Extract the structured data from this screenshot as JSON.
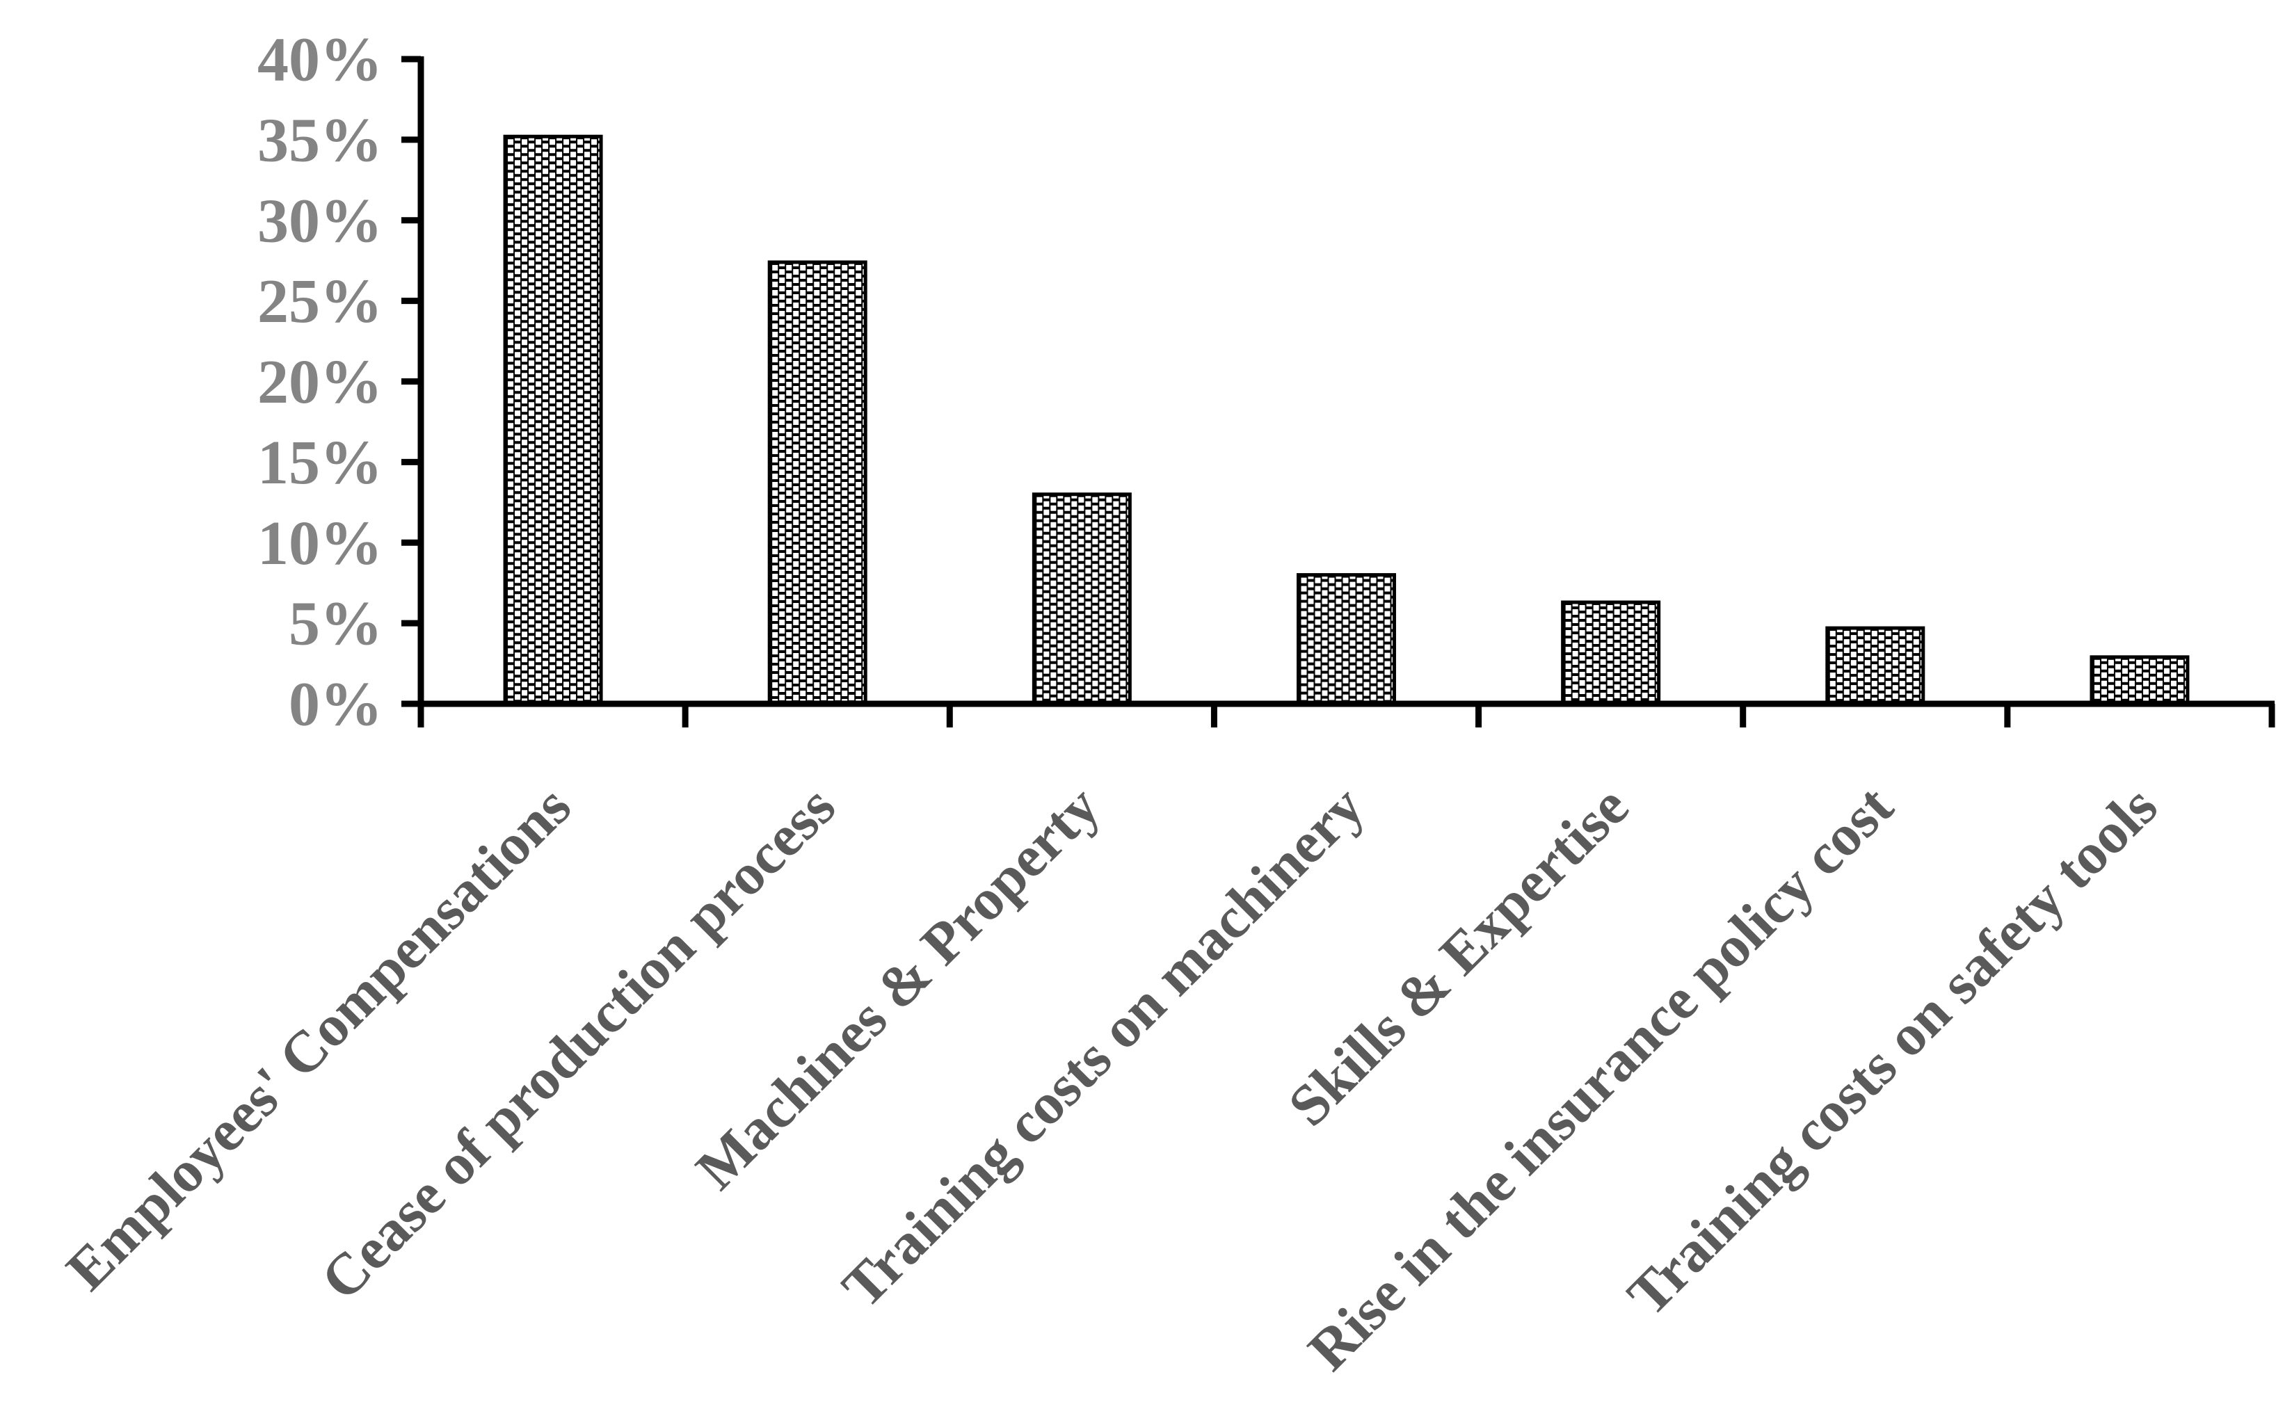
{
  "chart_data": {
    "type": "bar",
    "title": "",
    "xlabel": "",
    "ylabel": "",
    "categories": [
      "Employees' Compensations",
      "Cease of production process",
      "Machines & Property",
      "Training costs on machinery",
      "Skills & Expertise",
      "Rise in the insurance policy cost",
      "Training costs on safety tools"
    ],
    "values": [
      35.2,
      27.4,
      13.0,
      8.0,
      6.3,
      4.7,
      2.9
    ],
    "y_tick_labels": [
      "0%",
      "5%",
      "10%",
      "15%",
      "20%",
      "25%",
      "30%",
      "35%",
      "40%"
    ],
    "ylim": [
      0,
      40
    ],
    "y_tick_step": 5,
    "grid": false,
    "legend_position": "none",
    "bar_fill_pattern": "white-square-dots-on-black",
    "colors": {
      "bar_background": "#000000",
      "pattern_dot": "#ffffff",
      "axis": "#000000",
      "y_tick_label": "#848484",
      "category_label": "#5a5a5a",
      "background": "#ffffff"
    }
  }
}
